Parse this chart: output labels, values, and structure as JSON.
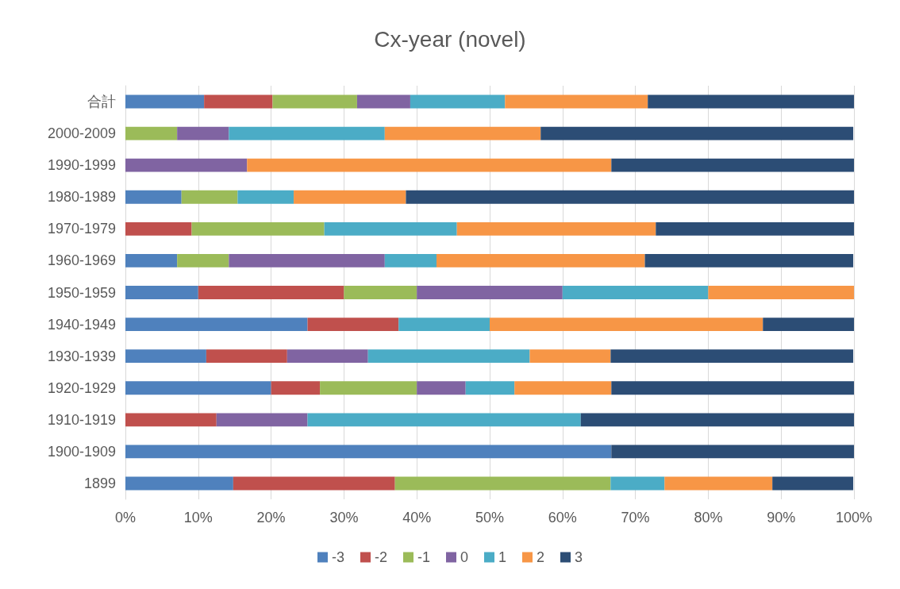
{
  "chart_data": {
    "type": "bar",
    "title": "Cx-year (novel)",
    "orientation": "horizontal",
    "stacked": true,
    "categories": [
      "合計",
      "2000-2009",
      "1990-1999",
      "1980-1989",
      "1970-1979",
      "1960-1969",
      "1950-1959",
      "1940-1949",
      "1930-1939",
      "1920-1929",
      "1910-1919",
      "1900-1909",
      "1899"
    ],
    "series": [
      {
        "name": "-3",
        "color": "#4f81bd",
        "values": [
          10.8,
          0,
          0,
          7.7,
          0,
          7.1,
          10,
          25,
          11.1,
          20,
          0,
          66.7,
          14.8
        ]
      },
      {
        "name": "-2",
        "color": "#c0504d",
        "values": [
          9.4,
          0,
          0,
          0,
          9.1,
          0,
          20,
          12.5,
          11.1,
          6.7,
          12.5,
          0,
          22.2
        ]
      },
      {
        "name": "-1",
        "color": "#9bbb59",
        "values": [
          11.6,
          7.1,
          0,
          7.7,
          18.2,
          7.1,
          10,
          0,
          0,
          13.3,
          0,
          0,
          29.6
        ]
      },
      {
        "name": "0",
        "color": "#8064a2",
        "values": [
          7.3,
          7.1,
          16.7,
          0,
          0,
          21.4,
          20,
          0,
          11.1,
          6.7,
          12.5,
          0,
          0
        ]
      },
      {
        "name": "1",
        "color": "#4bacc6",
        "values": [
          13.0,
          21.4,
          0,
          7.7,
          18.2,
          7.1,
          20,
          12.5,
          22.2,
          6.7,
          37.5,
          0,
          7.4
        ]
      },
      {
        "name": "2",
        "color": "#f79646",
        "values": [
          19.6,
          21.4,
          50,
          15.4,
          27.3,
          28.6,
          20,
          37.5,
          11.1,
          13.3,
          0,
          0,
          14.8
        ]
      },
      {
        "name": "3",
        "color": "#2c4d75",
        "values": [
          28.3,
          42.9,
          33.3,
          61.5,
          27.3,
          28.6,
          0,
          12.5,
          33.3,
          33.3,
          37.5,
          33.3,
          11.1
        ]
      }
    ],
    "xlim": [
      0,
      100
    ],
    "xticks": [
      {
        "value": 0,
        "label": "0%"
      },
      {
        "value": 10,
        "label": "10%"
      },
      {
        "value": 20,
        "label": "20%"
      },
      {
        "value": 30,
        "label": "30%"
      },
      {
        "value": 40,
        "label": "40%"
      },
      {
        "value": 50,
        "label": "50%"
      },
      {
        "value": 60,
        "label": "60%"
      },
      {
        "value": 70,
        "label": "70%"
      },
      {
        "value": 80,
        "label": "80%"
      },
      {
        "value": 90,
        "label": "90%"
      },
      {
        "value": 100,
        "label": "100%"
      }
    ],
    "grid": "x",
    "legend": "bottom"
  }
}
